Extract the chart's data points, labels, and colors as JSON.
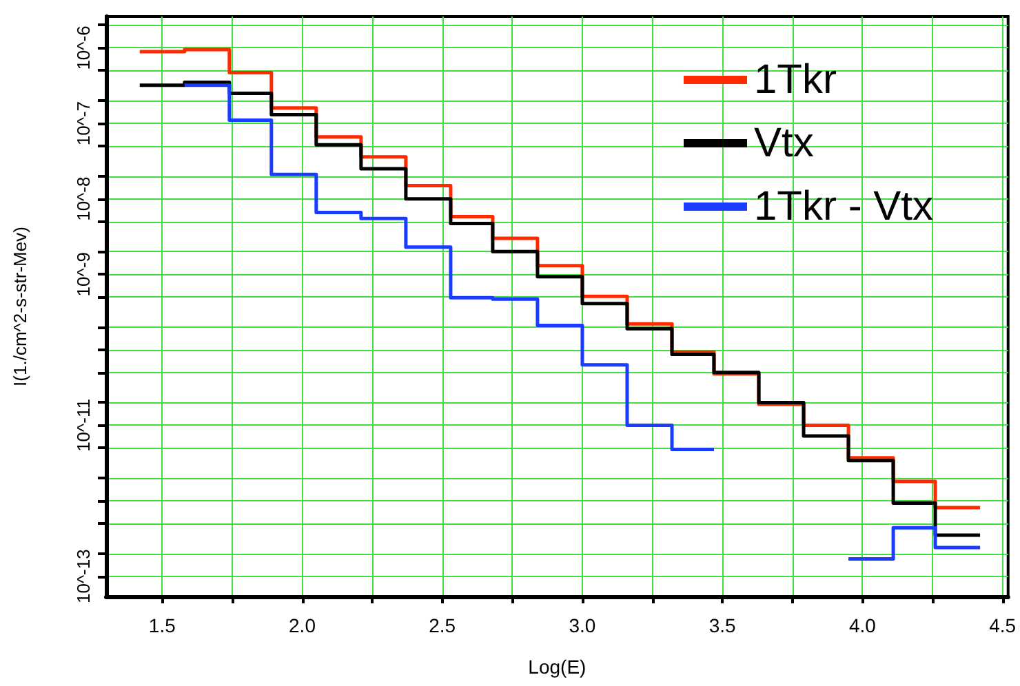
{
  "chart_data": {
    "type": "histogram",
    "xlabel": "Log(E)",
    "ylabel": "I(1./cm^2-s-str-Mev)",
    "bins": [
      1.42,
      1.58,
      1.74,
      1.89,
      2.05,
      2.21,
      2.37,
      2.53,
      2.68,
      2.84,
      3.0,
      3.16,
      3.32,
      3.47,
      3.63,
      3.79,
      3.95,
      4.11,
      4.26,
      4.42
    ],
    "series": [
      {
        "name": "1Tkr",
        "color": "#ff2a00",
        "values": [
          8.9e-07,
          9.5e-07,
          4.7e-07,
          1.6e-07,
          6.6e-08,
          3.6e-08,
          1.5e-08,
          5.8e-09,
          3e-09,
          1.3e-09,
          5.1e-10,
          2.2e-10,
          9.3e-11,
          4.8e-11,
          1.9e-11,
          1e-11,
          3.7e-12,
          1.8e-12,
          8.1e-13
        ]
      },
      {
        "name": "Vtx",
        "color": "#000000",
        "values": [
          3.2e-07,
          3.5e-07,
          2.5e-07,
          1.3e-07,
          5.2e-08,
          2.5e-08,
          1e-08,
          4.7e-09,
          2e-09,
          9.3e-10,
          4.1e-10,
          1.9e-10,
          8.7e-11,
          5e-11,
          2e-11,
          7.2e-12,
          3.4e-12,
          9.3e-13,
          3.5e-13
        ]
      },
      {
        "name": "1Tkr - Vtx",
        "color": "#1a3cff",
        "bins": [
          1.58,
          1.74,
          1.89,
          2.05,
          2.21,
          2.37,
          2.53,
          2.68,
          2.84,
          3.0,
          3.16,
          3.32,
          3.47
        ],
        "values": [
          3.2e-07,
          1.1e-07,
          2.1e-08,
          6.6e-09,
          5.5e-09,
          2.3e-09,
          4.9e-10,
          4.7e-10,
          2.1e-10,
          6.3e-11,
          1e-11,
          4.8e-12
        ]
      },
      {
        "color": "#1a3cff",
        "bins": [
          3.95,
          4.11,
          4.26,
          4.42
        ],
        "values": [
          1.7e-13,
          4.4e-13,
          2.4e-13
        ]
      }
    ],
    "xlim": [
      1.3,
      4.52
    ],
    "xticks": [
      1.5,
      {
        "value": 1.75,
        "label": null
      },
      {
        "value": 2.0,
        "label": "2.0"
      },
      {
        "value": 2.25,
        "label": null
      },
      2.5,
      {
        "value": 2.75,
        "label": null
      },
      {
        "value": 3.0,
        "label": "3.0"
      },
      {
        "value": 3.25,
        "label": null
      },
      3.5,
      {
        "value": 3.75,
        "label": null
      },
      {
        "value": 4.0,
        "label": "4.0"
      },
      {
        "value": 4.25,
        "label": null
      },
      4.5
    ],
    "ylim": [
      5.4e-14,
      2.6e-06
    ],
    "yticks": [
      {
        "value": 2e-13,
        "label": null
      },
      {
        "value": 1e-13,
        "label": "10^-13"
      },
      {
        "value": 5e-13,
        "label": null
      },
      {
        "value": 1e-12,
        "label": null
      },
      {
        "value": 2e-12,
        "label": null
      },
      {
        "value": 5e-12,
        "label": null
      },
      {
        "value": 1e-11,
        "label": "10^-11"
      },
      {
        "value": 2e-11,
        "label": null
      },
      {
        "value": 5e-11,
        "label": null
      },
      {
        "value": 1e-10,
        "label": null
      },
      {
        "value": 2e-10,
        "label": null
      },
      {
        "value": 5e-10,
        "label": null
      },
      {
        "value": 1e-09,
        "label": "10^-9"
      },
      {
        "value": 2e-09,
        "label": null
      },
      {
        "value": 5e-09,
        "label": null
      },
      {
        "value": 1e-08,
        "label": "10^-8"
      },
      {
        "value": 2e-08,
        "label": null
      },
      {
        "value": 5e-08,
        "label": null
      },
      {
        "value": 1e-07,
        "label": "10^-7"
      },
      {
        "value": 2e-07,
        "label": null
      },
      {
        "value": 5e-07,
        "label": null
      },
      {
        "value": 1e-06,
        "label": "10^-6"
      },
      {
        "value": 2e-06,
        "label": null
      }
    ],
    "log": true,
    "grid": true,
    "legend": "top right"
  }
}
